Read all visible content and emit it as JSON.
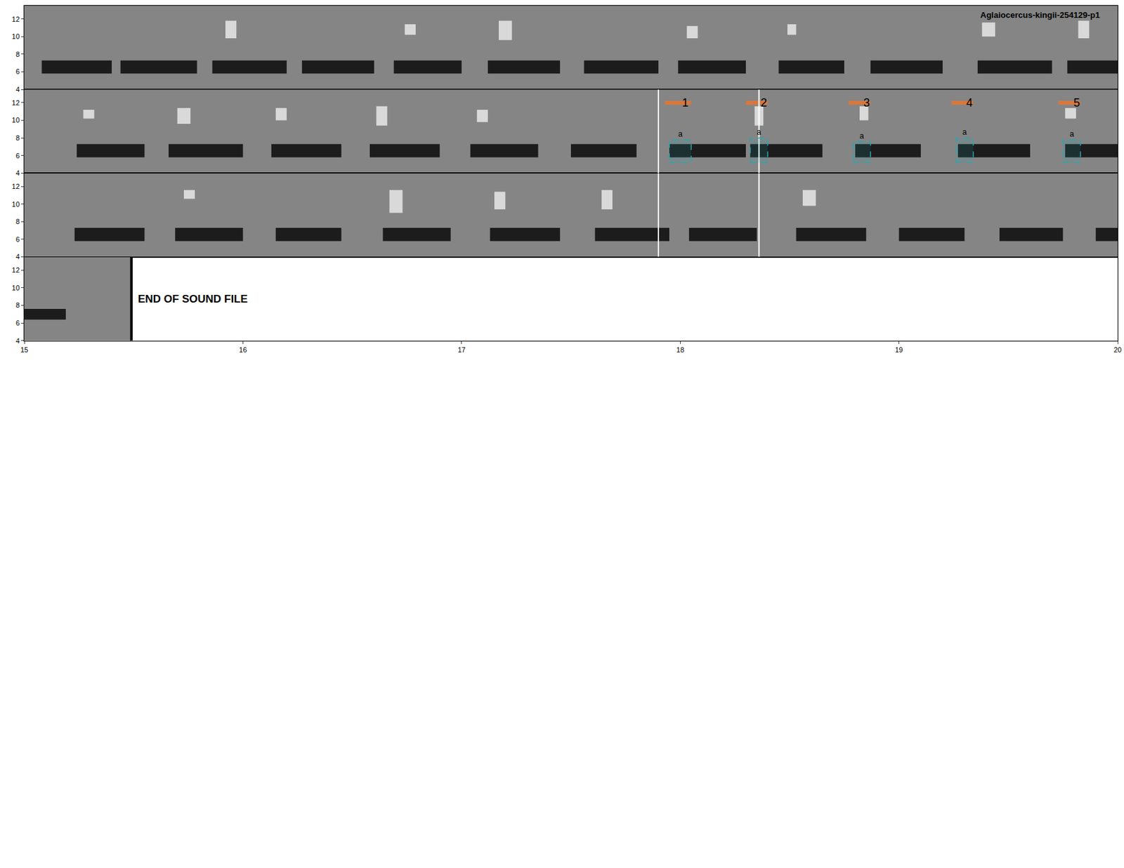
{
  "chart_data": {
    "type": "spectrogram",
    "title": "Aglaiocercus-kingii-254129-p1",
    "end_text": "END OF SOUND FILE",
    "end_time": 15.49,
    "color": "#1c1c1c",
    "panels": [
      {
        "xlim": [
          0,
          5
        ],
        "ylim": [
          4,
          13.5
        ],
        "yticks": [
          4,
          6,
          8,
          10,
          12
        ],
        "notes": [
          [
            0.08,
            0.4,
            5.8,
            7.3
          ],
          [
            0.44,
            0.79,
            5.8,
            7.3
          ],
          [
            0.86,
            1.2,
            5.8,
            7.3
          ],
          [
            1.27,
            1.6,
            5.8,
            7.3
          ],
          [
            1.69,
            2.0,
            5.8,
            7.3
          ],
          [
            2.12,
            2.45,
            5.8,
            7.3
          ],
          [
            2.56,
            2.9,
            5.8,
            7.3
          ],
          [
            2.99,
            3.3,
            5.8,
            7.3
          ],
          [
            3.45,
            3.75,
            5.8,
            7.3
          ],
          [
            3.87,
            4.2,
            5.8,
            7.3
          ],
          [
            4.36,
            4.7,
            5.8,
            7.3
          ],
          [
            4.77,
            5.0,
            5.8,
            7.3
          ]
        ],
        "highlights": [
          [
            0.92,
            0.97,
            9.8,
            11.8
          ],
          [
            1.74,
            1.79,
            10.2,
            11.4
          ],
          [
            2.17,
            2.23,
            9.6,
            11.8
          ],
          [
            3.03,
            3.08,
            9.8,
            11.2
          ],
          [
            3.49,
            3.53,
            10.2,
            11.4
          ],
          [
            4.38,
            4.44,
            10.0,
            11.6
          ],
          [
            4.82,
            4.87,
            9.8,
            11.8
          ]
        ]
      },
      {
        "xlim": [
          5,
          10
        ],
        "ylim": [
          4,
          13.5
        ],
        "yticks": [
          4,
          6,
          8,
          10,
          12
        ],
        "notes": [
          [
            5.24,
            5.55,
            5.8,
            7.3
          ],
          [
            5.66,
            6.0,
            5.8,
            7.3
          ],
          [
            6.13,
            6.45,
            5.8,
            7.3
          ],
          [
            6.58,
            6.9,
            5.8,
            7.3
          ],
          [
            7.04,
            7.35,
            5.8,
            7.3
          ],
          [
            7.5,
            7.8,
            5.8,
            7.3
          ],
          [
            7.95,
            8.3,
            5.8,
            7.3
          ],
          [
            8.32,
            8.65,
            5.8,
            7.3
          ],
          [
            8.8,
            9.1,
            5.8,
            7.3
          ],
          [
            9.27,
            9.6,
            5.8,
            7.3
          ],
          [
            9.76,
            10.0,
            5.8,
            7.3
          ]
        ],
        "highlights": [
          [
            5.27,
            5.32,
            10.2,
            11.2
          ],
          [
            5.7,
            5.76,
            9.6,
            11.4
          ],
          [
            6.15,
            6.2,
            10.0,
            11.4
          ],
          [
            6.61,
            6.66,
            9.4,
            11.6
          ],
          [
            7.07,
            7.12,
            9.8,
            11.2
          ],
          [
            8.34,
            8.38,
            9.4,
            11.6
          ],
          [
            8.82,
            8.86,
            10.0,
            11.6
          ],
          [
            9.76,
            9.81,
            10.2,
            11.4
          ]
        ],
        "selections": [
          {
            "label": "1",
            "tag": "a",
            "x0": 7.95,
            "x1": 8.05,
            "y0": 5.2,
            "y1": 7.8
          },
          {
            "label": "2",
            "tag": "a",
            "x0": 8.32,
            "x1": 8.4,
            "y0": 5.2,
            "y1": 8.0
          },
          {
            "label": "3",
            "tag": "a",
            "x0": 8.79,
            "x1": 8.87,
            "y0": 5.2,
            "y1": 7.6
          },
          {
            "label": "4",
            "tag": "a",
            "x0": 9.26,
            "x1": 9.34,
            "y0": 5.2,
            "y1": 8.0
          },
          {
            "label": "5",
            "tag": "a",
            "x0": 9.75,
            "x1": 9.83,
            "y0": 5.2,
            "y1": 7.8
          }
        ],
        "cursor_lines": [
          7.9,
          8.36
        ]
      },
      {
        "xlim": [
          10,
          15
        ],
        "ylim": [
          4,
          13.5
        ],
        "yticks": [
          4,
          6,
          8,
          10,
          12
        ],
        "notes": [
          [
            10.23,
            10.55,
            5.8,
            7.3
          ],
          [
            10.69,
            11.0,
            5.8,
            7.3
          ],
          [
            11.15,
            11.45,
            5.8,
            7.3
          ],
          [
            11.64,
            11.95,
            5.8,
            7.3
          ],
          [
            12.13,
            12.45,
            5.8,
            7.3
          ],
          [
            12.61,
            12.95,
            5.8,
            7.3
          ],
          [
            13.04,
            13.35,
            5.8,
            7.3
          ],
          [
            13.53,
            13.85,
            5.8,
            7.3
          ],
          [
            14.0,
            14.3,
            5.8,
            7.3
          ],
          [
            14.46,
            14.75,
            5.8,
            7.3
          ],
          [
            14.9,
            15.0,
            5.8,
            7.3
          ]
        ],
        "highlights": [
          [
            10.73,
            10.78,
            10.6,
            11.6
          ],
          [
            11.67,
            11.73,
            9.0,
            11.6
          ],
          [
            12.15,
            12.2,
            9.4,
            11.4
          ],
          [
            12.64,
            12.69,
            9.4,
            11.6
          ],
          [
            13.56,
            13.62,
            9.8,
            11.6
          ]
        ],
        "cursor_lines": [
          12.9,
          13.36
        ]
      },
      {
        "xlim": [
          15,
          20
        ],
        "ylim": [
          4,
          13.5
        ],
        "yticks": [
          4,
          6,
          8,
          10,
          12
        ],
        "xticks": [
          15,
          16,
          17,
          18,
          19,
          20
        ],
        "notes": [
          [
            15.0,
            15.19,
            6.4,
            7.6
          ]
        ],
        "highlights": []
      }
    ],
    "empty_panels": 6
  }
}
